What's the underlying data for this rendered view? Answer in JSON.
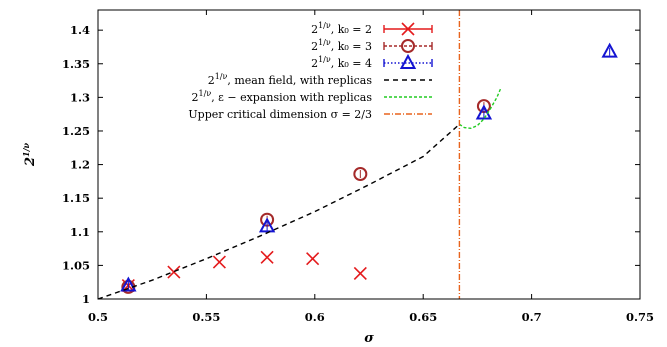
{
  "chart_data": {
    "type": "scatter",
    "xlabel": "σ",
    "ylabel": "2^{1/ν}",
    "xlim": [
      0.5,
      0.75
    ],
    "ylim": [
      1.0,
      1.43
    ],
    "x_ticks": [
      "0.5",
      "0.55",
      "0.6",
      "0.65",
      "0.7",
      "0.75"
    ],
    "y_ticks": [
      "1",
      "1.05",
      "1.1",
      "1.15",
      "1.2",
      "1.25",
      "1.3",
      "1.35",
      "1.4"
    ],
    "x_tick_values": [
      0.5,
      0.55,
      0.6,
      0.65,
      0.7,
      0.75
    ],
    "y_tick_values": [
      1.0,
      1.05,
      1.1,
      1.15,
      1.2,
      1.25,
      1.3,
      1.35,
      1.4
    ],
    "legend_position": "top-right",
    "grid": false,
    "series": [
      {
        "label": "2^{1/ν}, k₀ = 2",
        "kind": "points",
        "marker": "x",
        "color": "#e41a1c",
        "points": [
          [
            0.514,
            1.02
          ],
          [
            0.535,
            1.04
          ],
          [
            0.556,
            1.055
          ],
          [
            0.578,
            1.062
          ],
          [
            0.599,
            1.06
          ],
          [
            0.621,
            1.038
          ]
        ]
      },
      {
        "label": "2^{1/ν}, k₀ = 3",
        "kind": "points",
        "marker": "circle",
        "color": "#a52a2a",
        "points": [
          [
            0.514,
            1.018
          ],
          [
            0.578,
            1.118
          ],
          [
            0.621,
            1.186
          ],
          [
            0.678,
            1.287
          ]
        ]
      },
      {
        "label": "2^{1/ν}, k₀ = 4",
        "kind": "points",
        "marker": "triangle",
        "color": "#1414d2",
        "points": [
          [
            0.514,
            1.02
          ],
          [
            0.578,
            1.108
          ],
          [
            0.678,
            1.276
          ],
          [
            0.736,
            1.368
          ]
        ]
      },
      {
        "label": "2^{1/ν}, mean field, with replicas",
        "kind": "line",
        "dash": "5,4",
        "color": "#000000",
        "points": [
          [
            0.5,
            1.0
          ],
          [
            0.525,
            1.028
          ],
          [
            0.55,
            1.06
          ],
          [
            0.575,
            1.094
          ],
          [
            0.6,
            1.13
          ],
          [
            0.625,
            1.17
          ],
          [
            0.65,
            1.212
          ],
          [
            0.6667,
            1.26
          ]
        ]
      },
      {
        "label": "2^{1/ν}, ε − expansion with replicas",
        "kind": "line",
        "dash": "3,2",
        "color": "#22cc22",
        "points": [
          [
            0.6667,
            1.26
          ],
          [
            0.669,
            1.255
          ],
          [
            0.672,
            1.254
          ],
          [
            0.675,
            1.258
          ],
          [
            0.678,
            1.268
          ],
          [
            0.681,
            1.283
          ],
          [
            0.684,
            1.3
          ],
          [
            0.686,
            1.315
          ]
        ]
      },
      {
        "label": "Upper critical dimension σ = 2/3",
        "kind": "vline",
        "dash": "6,2,1,2",
        "color": "#e8641e",
        "x": 0.6667
      }
    ]
  }
}
